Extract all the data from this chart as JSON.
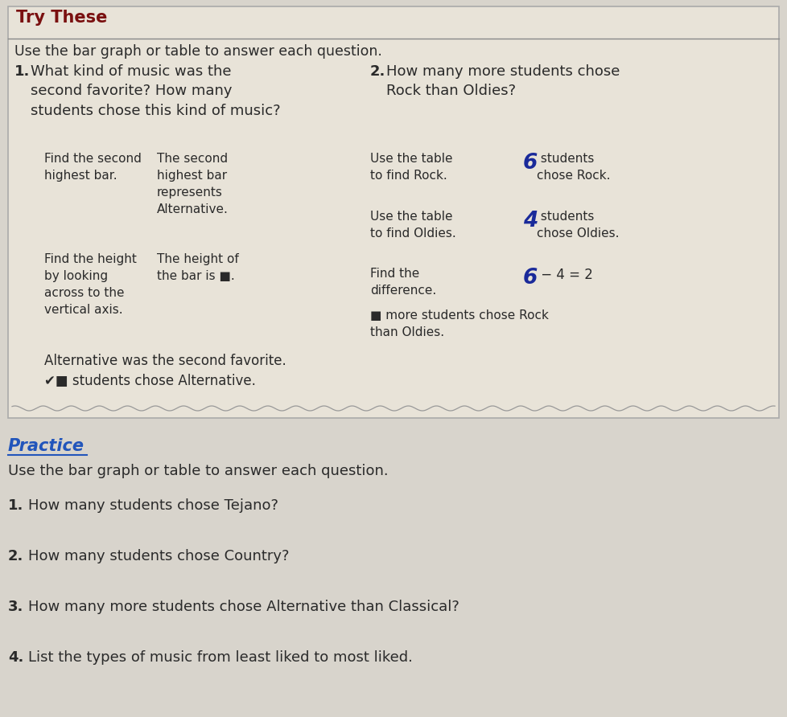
{
  "page_bg": "#d8d4cc",
  "box_bg": "#e8e3d8",
  "box_border": "#aaaaaa",
  "try_these_title": "Try These",
  "try_these_title_color": "#7a1010",
  "practice_title": "Practice",
  "practice_title_color": "#2255bb",
  "text_color": "#2a2a2a",
  "handwritten_color": "#1a2a9a",
  "instruction": "Use the bar graph or table to answer each question.",
  "q1_num": "1.",
  "q1_text": "What kind of music was the\nsecond favorite? How many\nstudents chose this kind of music?",
  "q2_num": "2.",
  "q2_text": "How many more students chose\nRock than Oldies?",
  "step1a_label": "Find the second\nhighest bar.",
  "step1a_text": "The second\nhighest bar\nrepresents\nAlternative.",
  "step1b_label": "Find the height\nby looking\nacross to the\nvertical axis.",
  "step1b_text": "The height of\nthe bar is ■.",
  "step2a_label": "Use the table\nto find Rock.",
  "step2a_num": "6",
  "step2a_text": " students\nchose Rock.",
  "step2b_label": "Use the table\nto find Oldies.",
  "step2b_num": "4",
  "step2b_text": " students\nchose Oldies.",
  "step2c_label": "Find the\ndifference.",
  "step2c_num": "6",
  "step2c_text": " − 4 = 2",
  "step2d_text": "■ more students chose Rock\nthan Oldies.",
  "conclusion1": "Alternative was the second favorite.",
  "conclusion2_prefix": "✔■",
  "conclusion2_text": " students chose Alternative.",
  "pq_instruction": "Use the bar graph or table to answer each question.",
  "pq1": "How many students chose Tejano?",
  "pq2": "How many students chose Country?",
  "pq3": "How many more students chose Alternative than Classical?",
  "pq4": "List the types of music from least liked to most liked."
}
